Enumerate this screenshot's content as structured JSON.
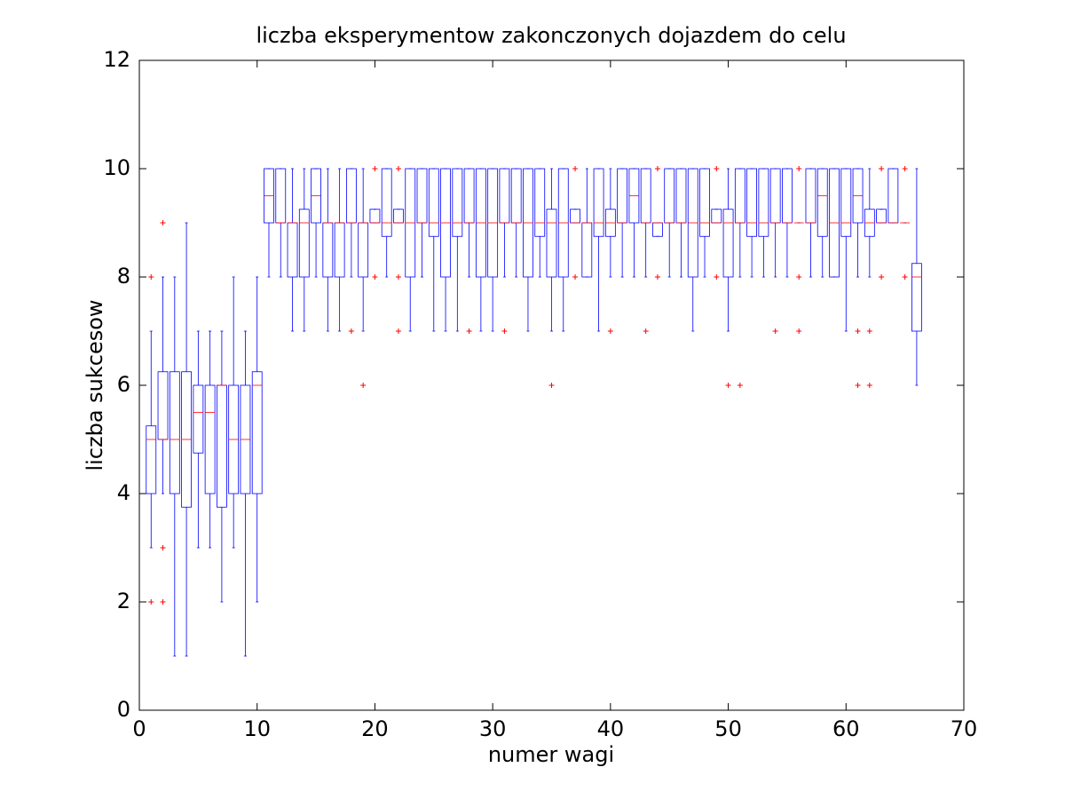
{
  "chart_data": {
    "type": "box",
    "title": "liczba eksperymentow zakonczonych dojazdem do celu",
    "xlabel": "numer wagi",
    "ylabel": "liczba sukcesow",
    "xlim": [
      0,
      70
    ],
    "ylim": [
      0,
      12
    ],
    "xticks": [
      0,
      10,
      20,
      30,
      40,
      50,
      60,
      70
    ],
    "yticks": [
      0,
      2,
      4,
      6,
      8,
      10,
      12
    ],
    "box_color": "#0000ff",
    "median_color": "#ff0000",
    "outlier_color": "#ff0000",
    "x": [
      1,
      2,
      3,
      4,
      5,
      6,
      7,
      8,
      9,
      10,
      11,
      12,
      13,
      14,
      15,
      16,
      17,
      18,
      19,
      20,
      21,
      22,
      23,
      24,
      25,
      26,
      27,
      28,
      29,
      30,
      31,
      32,
      33,
      34,
      35,
      36,
      37,
      38,
      39,
      40,
      41,
      42,
      43,
      44,
      45,
      46,
      47,
      48,
      49,
      50,
      51,
      52,
      53,
      54,
      55,
      56,
      57,
      58,
      59,
      60,
      61,
      62,
      63,
      64,
      65,
      66
    ],
    "boxes": [
      {
        "low": 3,
        "q1": 4,
        "median": 5,
        "q3": 5.25,
        "high": 7,
        "outliers": [
          8,
          2
        ]
      },
      {
        "low": 4,
        "q1": 5,
        "median": 5,
        "q3": 6.25,
        "high": 8,
        "outliers": [
          9,
          3,
          2
        ]
      },
      {
        "low": 1,
        "q1": 4,
        "median": 5,
        "q3": 6.25,
        "high": 8,
        "outliers": []
      },
      {
        "low": 1,
        "q1": 3.75,
        "median": 5,
        "q3": 6.25,
        "high": 9,
        "outliers": []
      },
      {
        "low": 3,
        "q1": 4.75,
        "median": 5.5,
        "q3": 6,
        "high": 7,
        "outliers": []
      },
      {
        "low": 3,
        "q1": 4,
        "median": 5.5,
        "q3": 6,
        "high": 7,
        "outliers": []
      },
      {
        "low": 2,
        "q1": 3.75,
        "median": 6,
        "q3": 6,
        "high": 7,
        "outliers": []
      },
      {
        "low": 3,
        "q1": 4,
        "median": 5,
        "q3": 6,
        "high": 8,
        "outliers": []
      },
      {
        "low": 1,
        "q1": 4,
        "median": 5,
        "q3": 6,
        "high": 7,
        "outliers": []
      },
      {
        "low": 2,
        "q1": 4,
        "median": 6,
        "q3": 6.25,
        "high": 8,
        "outliers": []
      },
      {
        "low": 8,
        "q1": 9,
        "median": 9.5,
        "q3": 10,
        "high": 10,
        "outliers": []
      },
      {
        "low": 8,
        "q1": 9,
        "median": 9,
        "q3": 10,
        "high": 10,
        "outliers": []
      },
      {
        "low": 7,
        "q1": 8,
        "median": 9,
        "q3": 9,
        "high": 10,
        "outliers": []
      },
      {
        "low": 7,
        "q1": 8,
        "median": 9,
        "q3": 9.25,
        "high": 10,
        "outliers": []
      },
      {
        "low": 8,
        "q1": 9,
        "median": 9.5,
        "q3": 10,
        "high": 10,
        "outliers": []
      },
      {
        "low": 7,
        "q1": 8,
        "median": 9,
        "q3": 9,
        "high": 10,
        "outliers": []
      },
      {
        "low": 7,
        "q1": 8,
        "median": 9,
        "q3": 9,
        "high": 10,
        "outliers": []
      },
      {
        "low": 8,
        "q1": 9,
        "median": 9,
        "q3": 10,
        "high": 10,
        "outliers": [
          7
        ]
      },
      {
        "low": 7,
        "q1": 8,
        "median": 9,
        "q3": 9,
        "high": 10,
        "outliers": [
          6
        ]
      },
      {
        "low": 9,
        "q1": 9,
        "median": 9,
        "q3": 9.25,
        "high": 9.25,
        "outliers": [
          10,
          8
        ]
      },
      {
        "low": 8,
        "q1": 8.75,
        "median": 9,
        "q3": 10,
        "high": 10,
        "outliers": []
      },
      {
        "low": 9,
        "q1": 9,
        "median": 9,
        "q3": 9.25,
        "high": 9.25,
        "outliers": [
          10,
          8,
          7
        ]
      },
      {
        "low": 7,
        "q1": 8,
        "median": 9,
        "q3": 10,
        "high": 10,
        "outliers": []
      },
      {
        "low": 8,
        "q1": 9,
        "median": 9,
        "q3": 10,
        "high": 10,
        "outliers": []
      },
      {
        "low": 7,
        "q1": 8.75,
        "median": 9,
        "q3": 10,
        "high": 10,
        "outliers": []
      },
      {
        "low": 7,
        "q1": 8,
        "median": 9,
        "q3": 10,
        "high": 10,
        "outliers": []
      },
      {
        "low": 7,
        "q1": 8.75,
        "median": 9,
        "q3": 10,
        "high": 10,
        "outliers": []
      },
      {
        "low": 8,
        "q1": 9,
        "median": 9,
        "q3": 10,
        "high": 10,
        "outliers": [
          7
        ]
      },
      {
        "low": 7,
        "q1": 8,
        "median": 9,
        "q3": 10,
        "high": 10,
        "outliers": []
      },
      {
        "low": 7,
        "q1": 8,
        "median": 9,
        "q3": 10,
        "high": 10,
        "outliers": []
      },
      {
        "low": 8,
        "q1": 9,
        "median": 9,
        "q3": 10,
        "high": 10,
        "outliers": [
          7
        ]
      },
      {
        "low": 8,
        "q1": 9,
        "median": 9,
        "q3": 10,
        "high": 10,
        "outliers": []
      },
      {
        "low": 7,
        "q1": 8,
        "median": 9,
        "q3": 10,
        "high": 10,
        "outliers": []
      },
      {
        "low": 8,
        "q1": 8.75,
        "median": 9,
        "q3": 10,
        "high": 10,
        "outliers": []
      },
      {
        "low": 7,
        "q1": 8,
        "median": 9,
        "q3": 9.25,
        "high": 10,
        "outliers": [
          6
        ]
      },
      {
        "low": 7,
        "q1": 8,
        "median": 9,
        "q3": 10,
        "high": 10,
        "outliers": []
      },
      {
        "low": 9,
        "q1": 9,
        "median": 9,
        "q3": 9.25,
        "high": 9.25,
        "outliers": [
          10,
          8
        ]
      },
      {
        "low": 8,
        "q1": 8,
        "median": 9,
        "q3": 9,
        "high": 10,
        "outliers": []
      },
      {
        "low": 7,
        "q1": 8.75,
        "median": 9,
        "q3": 10,
        "high": 10,
        "outliers": []
      },
      {
        "low": 8,
        "q1": 8.75,
        "median": 9,
        "q3": 9.25,
        "high": 10,
        "outliers": [
          7
        ]
      },
      {
        "low": 8,
        "q1": 9,
        "median": 9,
        "q3": 10,
        "high": 10,
        "outliers": []
      },
      {
        "low": 8,
        "q1": 9,
        "median": 9.5,
        "q3": 10,
        "high": 10,
        "outliers": []
      },
      {
        "low": 8,
        "q1": 9,
        "median": 9,
        "q3": 10,
        "high": 10,
        "outliers": [
          7
        ]
      },
      {
        "low": 8.75,
        "q1": 8.75,
        "median": 9,
        "q3": 9,
        "high": 9,
        "outliers": [
          10,
          8
        ]
      },
      {
        "low": 8,
        "q1": 9,
        "median": 9,
        "q3": 10,
        "high": 10,
        "outliers": []
      },
      {
        "low": 8,
        "q1": 9,
        "median": 9,
        "q3": 10,
        "high": 10,
        "outliers": []
      },
      {
        "low": 7,
        "q1": 8,
        "median": 9,
        "q3": 10,
        "high": 10,
        "outliers": []
      },
      {
        "low": 8,
        "q1": 8.75,
        "median": 9,
        "q3": 10,
        "high": 10,
        "outliers": []
      },
      {
        "low": 9,
        "q1": 9,
        "median": 9,
        "q3": 9.25,
        "high": 9.25,
        "outliers": [
          10,
          8
        ]
      },
      {
        "low": 7,
        "q1": 8,
        "median": 9,
        "q3": 9.25,
        "high": 10,
        "outliers": [
          6
        ]
      },
      {
        "low": 8,
        "q1": 9,
        "median": 9,
        "q3": 10,
        "high": 10,
        "outliers": [
          6
        ]
      },
      {
        "low": 8,
        "q1": 8.75,
        "median": 9,
        "q3": 10,
        "high": 10,
        "outliers": []
      },
      {
        "low": 8,
        "q1": 8.75,
        "median": 9,
        "q3": 10,
        "high": 10,
        "outliers": []
      },
      {
        "low": 8,
        "q1": 9,
        "median": 9,
        "q3": 10,
        "high": 10,
        "outliers": [
          7
        ]
      },
      {
        "low": 8,
        "q1": 9,
        "median": 9,
        "q3": 10,
        "high": 10,
        "outliers": []
      },
      {
        "low": 9,
        "q1": 9,
        "median": 9,
        "q3": 9,
        "high": 9,
        "outliers": [
          10,
          8,
          7
        ]
      },
      {
        "low": 8,
        "q1": 9,
        "median": 9,
        "q3": 10,
        "high": 10,
        "outliers": []
      },
      {
        "low": 8,
        "q1": 8.75,
        "median": 9.5,
        "q3": 10,
        "high": 10,
        "outliers": []
      },
      {
        "low": 8,
        "q1": 8,
        "median": 9,
        "q3": 10,
        "high": 10,
        "outliers": []
      },
      {
        "low": 7,
        "q1": 8.75,
        "median": 9,
        "q3": 10,
        "high": 10,
        "outliers": []
      },
      {
        "low": 8,
        "q1": 9,
        "median": 9.5,
        "q3": 10,
        "high": 10,
        "outliers": [
          7,
          6
        ]
      },
      {
        "low": 8,
        "q1": 8.75,
        "median": 9,
        "q3": 9.25,
        "high": 10,
        "outliers": [
          7,
          6
        ]
      },
      {
        "low": 9,
        "q1": 9,
        "median": 9,
        "q3": 9.25,
        "high": 9.25,
        "outliers": [
          10,
          8
        ]
      },
      {
        "low": 9,
        "q1": 9,
        "median": 9,
        "q3": 10,
        "high": 10,
        "outliers": []
      },
      {
        "low": 9,
        "q1": 9,
        "median": 9,
        "q3": 9,
        "high": 9,
        "outliers": [
          10,
          8
        ]
      },
      {
        "low": 6,
        "q1": 7,
        "median": 8,
        "q3": 8.25,
        "high": 10,
        "outliers": []
      }
    ]
  }
}
